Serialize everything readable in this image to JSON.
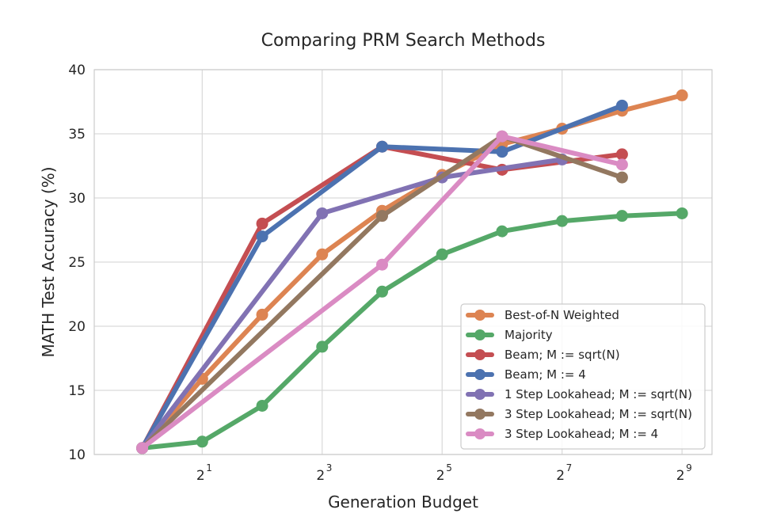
{
  "chart_data": {
    "type": "line",
    "title": "Comparing PRM Search Methods",
    "xlabel": "Generation Budget",
    "ylabel": "MATH Test Accuracy (%)",
    "x_scale": "log2",
    "x": [
      1,
      4,
      16,
      64,
      256
    ],
    "xlim_log2": [
      -0.8,
      9.5
    ],
    "ylim": [
      10,
      40
    ],
    "yticks": [
      "10",
      "15",
      "20",
      "25",
      "30",
      "35",
      "40"
    ],
    "xticks": [
      {
        "base": "2",
        "exp": "1",
        "value": 2
      },
      {
        "base": "2",
        "exp": "3",
        "value": 8
      },
      {
        "base": "2",
        "exp": "5",
        "value": 32
      },
      {
        "base": "2",
        "exp": "7",
        "value": 128
      },
      {
        "base": "2",
        "exp": "9",
        "value": 512
      }
    ],
    "grid": true,
    "legend_position": "lower-right",
    "series": [
      {
        "name": "Best-of-N Weighted",
        "color": "#dd8452",
        "points": [
          [
            1,
            10.5
          ],
          [
            2,
            15.9
          ],
          [
            4,
            20.9
          ],
          [
            8,
            25.6
          ],
          [
            16,
            29.0
          ],
          [
            32,
            31.8
          ],
          [
            64,
            34.2
          ],
          [
            128,
            35.4
          ],
          [
            256,
            36.8
          ],
          [
            512,
            38.0
          ]
        ]
      },
      {
        "name": "Majority",
        "color": "#55a868",
        "points": [
          [
            1,
            10.5
          ],
          [
            2,
            11.0
          ],
          [
            4,
            13.8
          ],
          [
            8,
            18.4
          ],
          [
            16,
            22.7
          ],
          [
            32,
            25.6
          ],
          [
            64,
            27.4
          ],
          [
            128,
            28.2
          ],
          [
            256,
            28.6
          ],
          [
            512,
            28.8
          ]
        ]
      },
      {
        "name": "Beam; M := sqrt(N)",
        "color": "#c44e52",
        "points": [
          [
            1,
            10.5
          ],
          [
            4,
            28.0
          ],
          [
            16,
            34.0
          ],
          [
            64,
            32.2
          ],
          [
            256,
            33.4
          ]
        ]
      },
      {
        "name": "Beam; M := 4",
        "color": "#4c72b0",
        "points": [
          [
            1,
            10.5
          ],
          [
            4,
            27.0
          ],
          [
            16,
            34.0
          ],
          [
            64,
            33.6
          ],
          [
            256,
            37.2
          ]
        ]
      },
      {
        "name": "1 Step Lookahead; M := sqrt(N)",
        "color": "#8172b3",
        "points": [
          [
            1,
            10.5
          ],
          [
            8,
            28.8
          ],
          [
            32,
            31.6
          ],
          [
            128,
            33.0
          ]
        ]
      },
      {
        "name": "3 Step Lookahead; M := sqrt(N)",
        "color": "#937860",
        "points": [
          [
            1,
            10.5
          ],
          [
            16,
            28.6
          ],
          [
            64,
            34.8
          ],
          [
            256,
            31.6
          ]
        ]
      },
      {
        "name": "3 Step Lookahead; M := 4",
        "color": "#da8bc3",
        "points": [
          [
            1,
            10.5
          ],
          [
            16,
            24.8
          ],
          [
            64,
            34.8
          ],
          [
            256,
            32.6
          ]
        ]
      }
    ]
  }
}
